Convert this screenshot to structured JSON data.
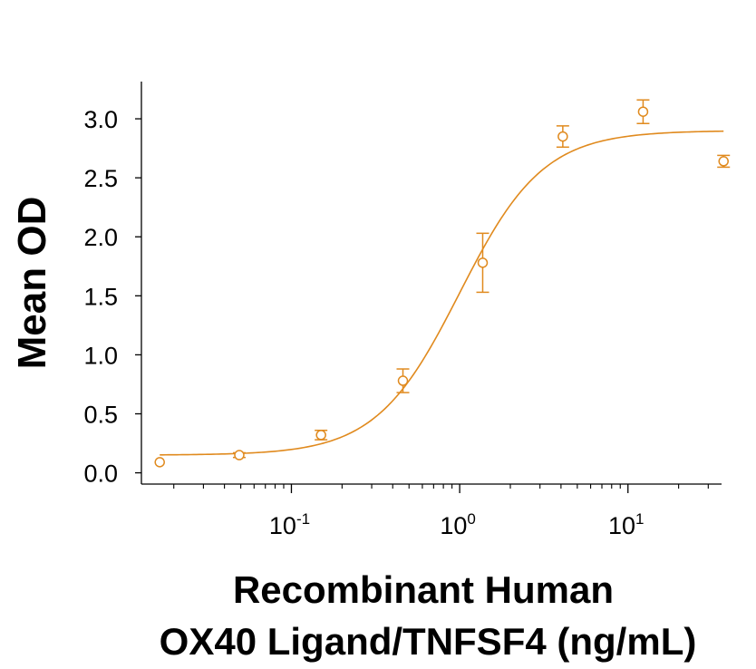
{
  "chart_data": {
    "type": "scatter",
    "x_scale": "log",
    "xlabel_line1": "Recombinant Human",
    "xlabel_line2": "OX40 Ligand/TNFSF4 (ng/mL)",
    "ylabel": "Mean OD",
    "xlim": [
      0.0117,
      50
    ],
    "ylim": [
      -0.08,
      3.3
    ],
    "y_ticks": [
      {
        "value": 0.0,
        "label": "0.0"
      },
      {
        "value": 0.5,
        "label": "0.5"
      },
      {
        "value": 1.0,
        "label": "1.0"
      },
      {
        "value": 1.5,
        "label": "1.5"
      },
      {
        "value": 2.0,
        "label": "2.0"
      },
      {
        "value": 2.5,
        "label": "2.5"
      },
      {
        "value": 3.0,
        "label": "3.0"
      }
    ],
    "x_ticks": [
      {
        "value": 0.1,
        "base": "10",
        "exp": "-1"
      },
      {
        "value": 1,
        "base": "10",
        "exp": "0"
      },
      {
        "value": 10,
        "base": "10",
        "exp": "1"
      }
    ],
    "color": "#E08A1E",
    "series": [
      {
        "points": [
          {
            "x": 0.0165,
            "y": 0.09,
            "err": 0.0
          },
          {
            "x": 0.049,
            "y": 0.15,
            "err": 0.02
          },
          {
            "x": 0.15,
            "y": 0.32,
            "err": 0.04
          },
          {
            "x": 0.46,
            "y": 0.78,
            "err": 0.1
          },
          {
            "x": 1.37,
            "y": 1.78,
            "err": 0.25
          },
          {
            "x": 4.1,
            "y": 2.85,
            "err": 0.09
          },
          {
            "x": 12.3,
            "y": 3.06,
            "err": 0.1
          },
          {
            "x": 37,
            "y": 2.64,
            "err": 0.05
          }
        ]
      }
    ],
    "fit_curve": {
      "model": "4PL",
      "bottom": 0.15,
      "top": 2.9,
      "ec50": 1.0,
      "hill": 1.75,
      "x_from": 0.0165,
      "x_to": 37
    }
  }
}
